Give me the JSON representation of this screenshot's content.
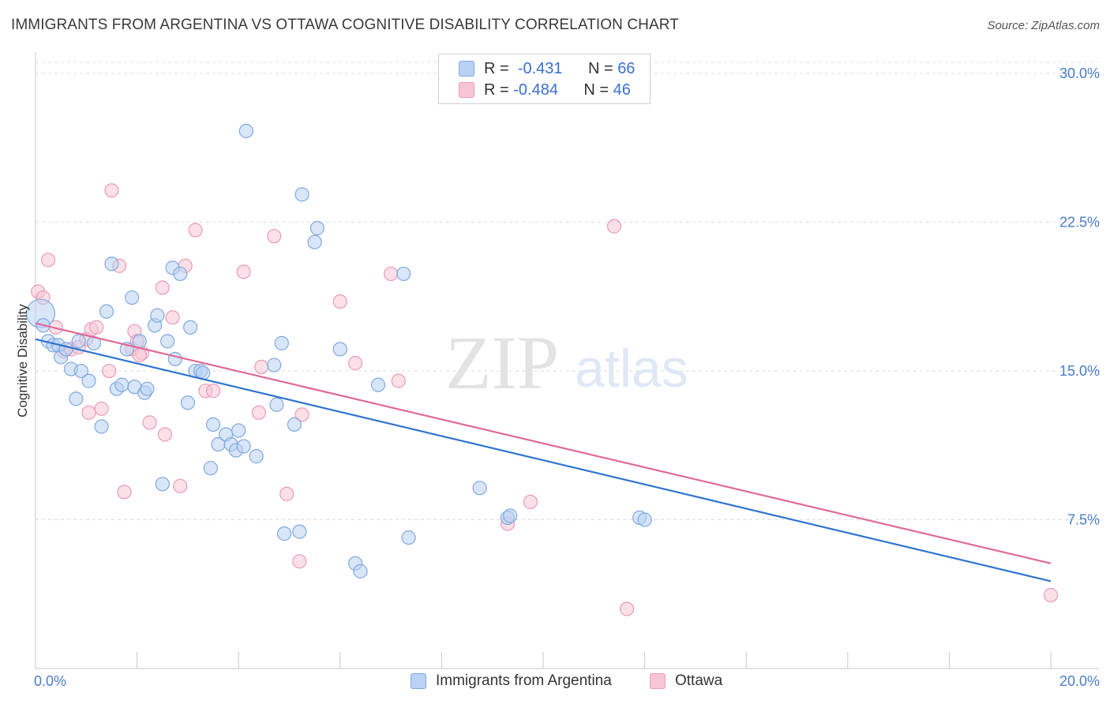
{
  "title": "IMMIGRANTS FROM ARGENTINA VS OTTAWA COGNITIVE DISABILITY CORRELATION CHART",
  "source": "Source: ZipAtlas.com",
  "watermark": {
    "zip": "ZIP",
    "atlas": "atlas"
  },
  "colors": {
    "blue_fill": "#b9d2f3",
    "blue_stroke": "#7fa9e0",
    "blue_line": "#2f74d0",
    "pink_fill": "#f7c6d6",
    "pink_stroke": "#eb9ab6",
    "pink_line": "#e06a96",
    "tick_text": "#4a7ccc",
    "grid": "#dcdcdc"
  },
  "legend": {
    "rows": [
      {
        "r_label": "R =",
        "r_value": "-0.431",
        "n_label": "N =",
        "n_value": "66",
        "series": "blue"
      },
      {
        "r_label": "R =",
        "r_value": "-0.484",
        "n_label": "N =",
        "n_value": "46",
        "series": "pink"
      }
    ]
  },
  "bottom_legend": [
    "Immigrants from Argentina",
    "Ottawa"
  ],
  "chart_data": {
    "type": "scatter",
    "title": "IMMIGRANTS FROM ARGENTINA VS OTTAWA COGNITIVE DISABILITY CORRELATION CHART",
    "xlabel": "",
    "ylabel": "Cognitive Disability",
    "xlim": [
      0,
      20
    ],
    "ylim": [
      0,
      30.8
    ],
    "x_tick_labels": [
      "0.0%",
      "20.0%"
    ],
    "y_ticks": [
      7.5,
      15.0,
      22.5,
      30.0
    ],
    "y_tick_labels": [
      "7.5%",
      "15.0%",
      "22.5%",
      "30.0%"
    ],
    "grid": "horizontal dashed",
    "legend_position": "top-center",
    "series": [
      {
        "name": "Immigrants from Argentina",
        "color": "blue",
        "trend": {
          "x": [
            0.0,
            20.0
          ],
          "y": [
            16.6,
            4.4
          ]
        },
        "points": [
          [
            0.1,
            17.9
          ],
          [
            0.15,
            17.3
          ],
          [
            0.25,
            16.5
          ],
          [
            0.35,
            16.3
          ],
          [
            0.45,
            16.3
          ],
          [
            0.5,
            15.7
          ],
          [
            0.6,
            16.1
          ],
          [
            0.7,
            15.1
          ],
          [
            0.85,
            16.5
          ],
          [
            0.8,
            13.6
          ],
          [
            0.9,
            15.0
          ],
          [
            1.05,
            14.5
          ],
          [
            1.15,
            16.4
          ],
          [
            1.3,
            12.2
          ],
          [
            1.4,
            18.0
          ],
          [
            1.5,
            20.4
          ],
          [
            1.6,
            14.1
          ],
          [
            1.7,
            14.3
          ],
          [
            1.8,
            16.1
          ],
          [
            1.9,
            18.7
          ],
          [
            1.95,
            14.2
          ],
          [
            2.05,
            16.5
          ],
          [
            2.15,
            13.9
          ],
          [
            2.2,
            14.1
          ],
          [
            2.35,
            17.3
          ],
          [
            2.4,
            17.8
          ],
          [
            2.5,
            9.3
          ],
          [
            2.6,
            16.5
          ],
          [
            2.7,
            20.2
          ],
          [
            2.75,
            15.6
          ],
          [
            2.85,
            19.9
          ],
          [
            3.0,
            13.4
          ],
          [
            3.05,
            17.2
          ],
          [
            3.15,
            15.0
          ],
          [
            3.25,
            15.0
          ],
          [
            3.3,
            14.9
          ],
          [
            3.45,
            10.1
          ],
          [
            3.5,
            12.3
          ],
          [
            3.6,
            11.3
          ],
          [
            3.75,
            11.8
          ],
          [
            3.85,
            11.3
          ],
          [
            3.95,
            11.0
          ],
          [
            4.0,
            12.0
          ],
          [
            4.1,
            11.2
          ],
          [
            4.15,
            27.1
          ],
          [
            4.35,
            10.7
          ],
          [
            4.7,
            15.3
          ],
          [
            4.75,
            13.3
          ],
          [
            4.85,
            16.4
          ],
          [
            4.9,
            6.8
          ],
          [
            5.1,
            12.3
          ],
          [
            5.2,
            6.9
          ],
          [
            5.25,
            23.9
          ],
          [
            5.5,
            21.5
          ],
          [
            5.55,
            22.2
          ],
          [
            6.0,
            16.1
          ],
          [
            6.3,
            5.3
          ],
          [
            6.4,
            4.9
          ],
          [
            6.75,
            14.3
          ],
          [
            7.25,
            19.9
          ],
          [
            7.35,
            6.6
          ],
          [
            8.75,
            9.1
          ],
          [
            9.3,
            7.6
          ],
          [
            9.35,
            7.7
          ],
          [
            11.9,
            7.6
          ],
          [
            12.0,
            7.5
          ]
        ]
      },
      {
        "name": "Ottawa",
        "color": "pink",
        "trend": {
          "x": [
            0.0,
            20.0
          ],
          "y": [
            17.4,
            5.3
          ]
        },
        "points": [
          [
            0.05,
            19.0
          ],
          [
            0.15,
            18.7
          ],
          [
            0.25,
            20.6
          ],
          [
            0.4,
            17.2
          ],
          [
            0.55,
            16.0
          ],
          [
            0.7,
            16.1
          ],
          [
            0.85,
            16.2
          ],
          [
            1.0,
            16.6
          ],
          [
            1.05,
            12.9
          ],
          [
            1.1,
            17.1
          ],
          [
            1.2,
            17.2
          ],
          [
            1.3,
            13.1
          ],
          [
            1.45,
            15.0
          ],
          [
            1.5,
            24.1
          ],
          [
            1.65,
            20.3
          ],
          [
            1.75,
            8.9
          ],
          [
            1.9,
            16.1
          ],
          [
            1.95,
            17.0
          ],
          [
            2.0,
            16.5
          ],
          [
            2.1,
            15.9
          ],
          [
            2.25,
            12.4
          ],
          [
            2.5,
            19.2
          ],
          [
            2.55,
            11.8
          ],
          [
            2.7,
            17.7
          ],
          [
            2.85,
            9.2
          ],
          [
            2.95,
            20.3
          ],
          [
            3.15,
            22.1
          ],
          [
            3.35,
            14.0
          ],
          [
            3.5,
            14.0
          ],
          [
            4.1,
            20.0
          ],
          [
            4.4,
            12.9
          ],
          [
            4.45,
            15.2
          ],
          [
            4.7,
            21.8
          ],
          [
            4.95,
            8.8
          ],
          [
            5.2,
            5.4
          ],
          [
            5.25,
            12.8
          ],
          [
            6.0,
            18.5
          ],
          [
            6.3,
            15.4
          ],
          [
            7.0,
            19.9
          ],
          [
            7.15,
            14.5
          ],
          [
            9.3,
            7.3
          ],
          [
            9.75,
            8.4
          ],
          [
            11.4,
            22.3
          ],
          [
            11.65,
            3.0
          ],
          [
            20.0,
            3.7
          ],
          [
            2.05,
            15.8
          ]
        ]
      }
    ]
  }
}
